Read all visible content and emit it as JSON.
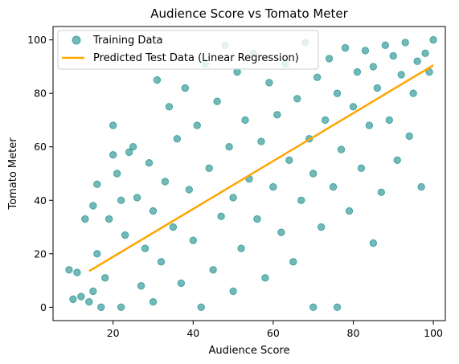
{
  "chart_data": {
    "type": "scatter",
    "title": "Audience Score vs Tomato Meter",
    "xlabel": "Audience Score",
    "ylabel": "Tomato Meter",
    "xlim": [
      5,
      103
    ],
    "ylim": [
      -5,
      105
    ],
    "xticks": [
      20,
      40,
      60,
      80,
      100
    ],
    "yticks": [
      0,
      20,
      40,
      60,
      80,
      100
    ],
    "grid": false,
    "legend_position": "top-left",
    "series": [
      {
        "name": "Training Data",
        "kind": "scatter",
        "color": "#008080",
        "opacity": 0.55,
        "sample_points": [
          [
            9,
            14
          ],
          [
            10,
            3
          ],
          [
            11,
            13
          ],
          [
            12,
            4
          ],
          [
            13,
            33
          ],
          [
            14,
            2
          ],
          [
            15,
            6
          ],
          [
            15,
            38
          ],
          [
            16,
            20
          ],
          [
            16,
            46
          ],
          [
            17,
            0
          ],
          [
            18,
            11
          ],
          [
            19,
            33
          ],
          [
            20,
            57
          ],
          [
            20,
            68
          ],
          [
            21,
            50
          ],
          [
            22,
            0
          ],
          [
            22,
            40
          ],
          [
            23,
            27
          ],
          [
            24,
            58
          ],
          [
            25,
            60
          ],
          [
            26,
            41
          ],
          [
            27,
            8
          ],
          [
            28,
            22
          ],
          [
            29,
            54
          ],
          [
            30,
            2
          ],
          [
            30,
            36
          ],
          [
            31,
            85
          ],
          [
            32,
            17
          ],
          [
            33,
            47
          ],
          [
            34,
            75
          ],
          [
            35,
            30
          ],
          [
            36,
            63
          ],
          [
            37,
            9
          ],
          [
            38,
            82
          ],
          [
            39,
            44
          ],
          [
            40,
            25
          ],
          [
            41,
            68
          ],
          [
            42,
            0
          ],
          [
            43,
            91
          ],
          [
            44,
            52
          ],
          [
            45,
            14
          ],
          [
            46,
            77
          ],
          [
            47,
            34
          ],
          [
            48,
            98
          ],
          [
            49,
            60
          ],
          [
            50,
            6
          ],
          [
            50,
            41
          ],
          [
            51,
            88
          ],
          [
            52,
            22
          ],
          [
            53,
            70
          ],
          [
            54,
            48
          ],
          [
            55,
            95
          ],
          [
            56,
            33
          ],
          [
            57,
            62
          ],
          [
            58,
            11
          ],
          [
            59,
            84
          ],
          [
            60,
            45
          ],
          [
            61,
            72
          ],
          [
            62,
            28
          ],
          [
            63,
            91
          ],
          [
            64,
            55
          ],
          [
            65,
            17
          ],
          [
            66,
            78
          ],
          [
            67,
            40
          ],
          [
            68,
            99
          ],
          [
            69,
            63
          ],
          [
            70,
            0
          ],
          [
            70,
            50
          ],
          [
            71,
            86
          ],
          [
            72,
            30
          ],
          [
            73,
            70
          ],
          [
            74,
            93
          ],
          [
            75,
            45
          ],
          [
            76,
            0
          ],
          [
            76,
            80
          ],
          [
            77,
            59
          ],
          [
            78,
            97
          ],
          [
            79,
            36
          ],
          [
            80,
            75
          ],
          [
            81,
            88
          ],
          [
            82,
            52
          ],
          [
            83,
            96
          ],
          [
            84,
            68
          ],
          [
            85,
            24
          ],
          [
            85,
            90
          ],
          [
            86,
            82
          ],
          [
            87,
            43
          ],
          [
            88,
            98
          ],
          [
            89,
            70
          ],
          [
            90,
            94
          ],
          [
            91,
            55
          ],
          [
            92,
            87
          ],
          [
            93,
            99
          ],
          [
            94,
            64
          ],
          [
            95,
            80
          ],
          [
            96,
            92
          ],
          [
            97,
            45
          ],
          [
            98,
            95
          ],
          [
            99,
            88
          ],
          [
            100,
            100
          ]
        ]
      },
      {
        "name": "Predicted Test Data (Linear Regression)",
        "kind": "line",
        "color": "#ffa500",
        "x": [
          14,
          100
        ],
        "y": [
          13.5,
          90.5
        ]
      }
    ]
  }
}
